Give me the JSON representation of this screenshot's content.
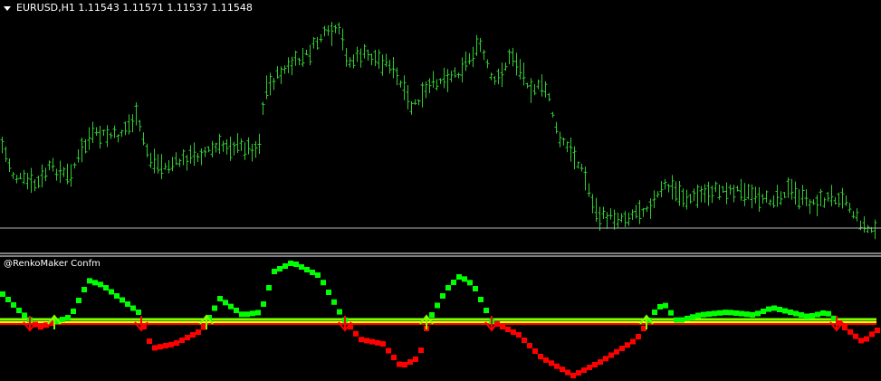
{
  "main_chart": {
    "symbol": "EURUSD,H1",
    "ohlc": {
      "open": "1.11543",
      "high": "1.11571",
      "low": "1.11537",
      "close": "1.11548"
    },
    "header_text": "EURUSD,H1  1.11543 1.11571 1.11537 1.11548",
    "bar_color": "#2ecc2e",
    "price_line_color": "#b4b4b4"
  },
  "indicator": {
    "name": "@RenkoMaker Confm",
    "up_color": "#00ff00",
    "down_color": "#ff0000",
    "level_colors": [
      "#7fff00",
      "#ffff00",
      "#ff0000"
    ],
    "icons": [
      "up-arrow-icon",
      "down-arrow-icon"
    ]
  }
}
